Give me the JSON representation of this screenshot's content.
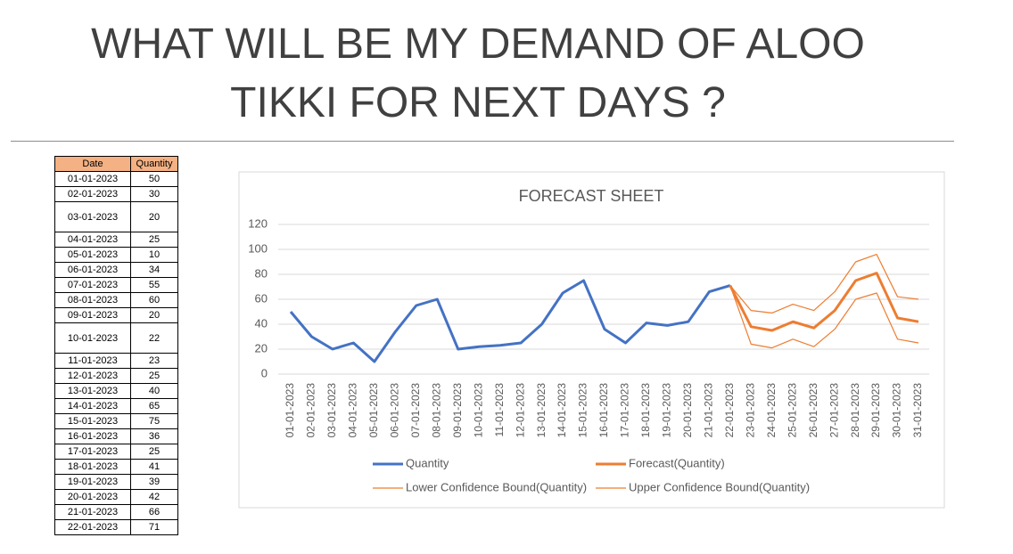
{
  "title": [
    "WHAT WILL BE MY DEMAND OF ALOO",
    "TIKKI FOR NEXT DAYS ?"
  ],
  "table": {
    "header": [
      "Date",
      "Quantity"
    ],
    "rows": [
      [
        "01-01-2023",
        "50"
      ],
      [
        "02-01-2023",
        "30"
      ],
      [
        "03-01-2023",
        "20"
      ],
      [
        "04-01-2023",
        "25"
      ],
      [
        "05-01-2023",
        "10"
      ],
      [
        "06-01-2023",
        "34"
      ],
      [
        "07-01-2023",
        "55"
      ],
      [
        "08-01-2023",
        "60"
      ],
      [
        "09-01-2023",
        "20"
      ],
      [
        "10-01-2023",
        "22"
      ],
      [
        "11-01-2023",
        "23"
      ],
      [
        "12-01-2023",
        "25"
      ],
      [
        "13-01-2023",
        "40"
      ],
      [
        "14-01-2023",
        "65"
      ],
      [
        "15-01-2023",
        "75"
      ],
      [
        "16-01-2023",
        "36"
      ],
      [
        "17-01-2023",
        "25"
      ],
      [
        "18-01-2023",
        "41"
      ],
      [
        "19-01-2023",
        "39"
      ],
      [
        "20-01-2023",
        "42"
      ],
      [
        "21-01-2023",
        "66"
      ],
      [
        "22-01-2023",
        "71"
      ]
    ]
  },
  "chart_data": {
    "type": "line",
    "title": "FORECAST SHEET",
    "categories": [
      "01-01-2023",
      "02-01-2023",
      "03-01-2023",
      "04-01-2023",
      "05-01-2023",
      "06-01-2023",
      "07-01-2023",
      "08-01-2023",
      "09-01-2023",
      "10-01-2023",
      "11-01-2023",
      "12-01-2023",
      "13-01-2023",
      "14-01-2023",
      "15-01-2023",
      "16-01-2023",
      "17-01-2023",
      "18-01-2023",
      "19-01-2023",
      "20-01-2023",
      "21-01-2023",
      "22-01-2023",
      "23-01-2023",
      "24-01-2023",
      "25-01-2023",
      "26-01-2023",
      "27-01-2023",
      "28-01-2023",
      "29-01-2023",
      "30-01-2023",
      "31-01-2023"
    ],
    "series": [
      {
        "name": "Quantity",
        "color": "#4472c4",
        "line_width": 3,
        "values": [
          50,
          30,
          20,
          25,
          10,
          34,
          55,
          60,
          20,
          22,
          23,
          25,
          40,
          65,
          75,
          36,
          25,
          41,
          39,
          42,
          66,
          71,
          null,
          null,
          null,
          null,
          null,
          null,
          null,
          null,
          null
        ]
      },
      {
        "name": "Forecast(Quantity)",
        "color": "#ed7d31",
        "line_width": 3,
        "values": [
          null,
          null,
          null,
          null,
          null,
          null,
          null,
          null,
          null,
          null,
          null,
          null,
          null,
          null,
          null,
          null,
          null,
          null,
          null,
          null,
          null,
          71,
          38,
          35,
          42,
          37,
          51,
          75,
          81,
          45,
          42
        ]
      },
      {
        "name": "Lower Confidence Bound(Quantity)",
        "color": "#ed7d31",
        "line_width": 1.2,
        "values": [
          null,
          null,
          null,
          null,
          null,
          null,
          null,
          null,
          null,
          null,
          null,
          null,
          null,
          null,
          null,
          null,
          null,
          null,
          null,
          null,
          null,
          71,
          24,
          21,
          28,
          22,
          36,
          60,
          65,
          28,
          25
        ]
      },
      {
        "name": "Upper Confidence Bound(Quantity)",
        "color": "#ed7d31",
        "line_width": 1.2,
        "values": [
          null,
          null,
          null,
          null,
          null,
          null,
          null,
          null,
          null,
          null,
          null,
          null,
          null,
          null,
          null,
          null,
          null,
          null,
          null,
          null,
          null,
          71,
          51,
          49,
          56,
          51,
          66,
          90,
          96,
          62,
          60
        ]
      }
    ],
    "ylim": [
      0,
      120
    ],
    "yticks": [
      0,
      20,
      40,
      60,
      80,
      100,
      120
    ],
    "grid": true
  }
}
